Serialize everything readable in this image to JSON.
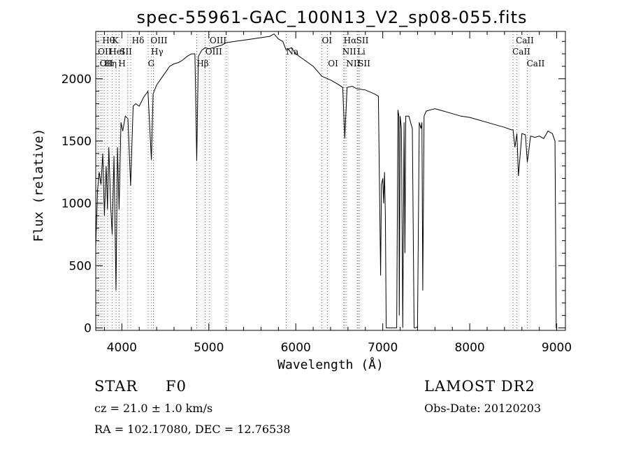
{
  "chart_data": {
    "type": "line",
    "title": "spec-55961-GAC_100N13_V2_sp08-055.fits",
    "xlabel": "Wavelength (Å)",
    "ylabel": "Flux (relative)",
    "xlim": [
      3700,
      9100
    ],
    "ylim": [
      -20,
      2380
    ],
    "xticks": [
      4000,
      5000,
      6000,
      7000,
      8000,
      9000
    ],
    "yticks": [
      0,
      500,
      1000,
      1500,
      2000
    ],
    "grid": false,
    "series": [
      {
        "x": [
          3700,
          3720,
          3740,
          3760,
          3780,
          3800,
          3820,
          3835,
          3850,
          3870,
          3889,
          3910,
          3933,
          3950,
          3968,
          3990,
          4010,
          4040,
          4070,
          4101,
          4130,
          4160,
          4200,
          4250,
          4300,
          4340,
          4360,
          4400,
          4450,
          4500,
          4550,
          4600,
          4650,
          4700,
          4750,
          4800,
          4840,
          4861,
          4880,
          4920,
          4960,
          5000,
          5050,
          5100,
          5150,
          5200,
          5300,
          5400,
          5500,
          5600,
          5700,
          5750,
          5800,
          5850,
          5890,
          5950,
          6000,
          6100,
          6200,
          6300,
          6400,
          6500,
          6540,
          6563,
          6590,
          6650,
          6700,
          6800,
          6900,
          6950,
          6965,
          6975,
          6985,
          7000,
          7010,
          7020,
          7030,
          7040,
          7060,
          7100,
          7140,
          7160,
          7175,
          7185,
          7190,
          7200,
          7215,
          7230,
          7245,
          7255,
          7265,
          7300,
          7320,
          7340,
          7360,
          7380,
          7400,
          7420,
          7440,
          7450,
          7460,
          7475,
          7500,
          7550,
          7600,
          7700,
          7800,
          7900,
          8000,
          8100,
          8200,
          8300,
          8400,
          8480,
          8498,
          8520,
          8542,
          8560,
          8600,
          8640,
          8662,
          8700,
          8750,
          8800,
          8850,
          8900,
          8950,
          8980,
          8995,
          9000
        ],
        "y": [
          650,
          1100,
          1250,
          1150,
          1400,
          900,
          1300,
          950,
          1450,
          1000,
          750,
          1380,
          300,
          1450,
          950,
          1650,
          1580,
          1700,
          1680,
          1140,
          1780,
          1800,
          1780,
          1850,
          1900,
          1350,
          1880,
          1950,
          2000,
          2050,
          2100,
          2120,
          2130,
          2150,
          2180,
          2200,
          2200,
          1340,
          2180,
          2230,
          2250,
          2240,
          2250,
          2260,
          2270,
          2290,
          2300,
          2310,
          2320,
          2330,
          2340,
          2360,
          2320,
          2300,
          2230,
          2250,
          2200,
          2150,
          2100,
          2020,
          1990,
          1950,
          1930,
          1520,
          1930,
          1940,
          1920,
          1910,
          1880,
          1860,
          1000,
          420,
          1150,
          1200,
          1000,
          1250,
          900,
          0,
          0,
          0,
          0,
          0,
          1750,
          1700,
          100,
          1700,
          1600,
          0,
          1650,
          600,
          1700,
          1700,
          1650,
          1600,
          0,
          0,
          10,
          1650,
          1600,
          1650,
          300,
          1700,
          1740,
          1750,
          1760,
          1740,
          1720,
          1700,
          1690,
          1670,
          1650,
          1630,
          1610,
          1590,
          1590,
          1450,
          1560,
          1220,
          1560,
          1550,
          1330,
          1540,
          1530,
          1540,
          1520,
          1580,
          1560,
          1500,
          0,
          0
        ]
      }
    ],
    "lines": [
      {
        "x": 3727,
        "top": "OII",
        "mid": null
      },
      {
        "x": 3750,
        "top": "OII",
        "mid": "OII"
      },
      {
        "x": 3771,
        "top": "Hθ",
        "mid": null
      },
      {
        "x": 3798,
        "top": "Hη",
        "mid": null
      },
      {
        "x": 3835,
        "top": "HeI",
        "mid": "Hη"
      },
      {
        "x": 3889,
        "top": "K",
        "mid": "HeI"
      },
      {
        "x": 3933,
        "top": "SII",
        "mid": "H"
      },
      {
        "x": 3968,
        "top": "H",
        "mid": null
      },
      {
        "x": 4068,
        "top": "SII",
        "mid": null
      },
      {
        "x": 4101,
        "top": "Hδ",
        "mid": null
      },
      {
        "x": 4304,
        "top": "G",
        "mid": null
      },
      {
        "x": 4340,
        "top": "Hγ",
        "mid": null
      },
      {
        "x": 4363,
        "top": "OIII",
        "mid": null
      },
      {
        "x": 4861,
        "top": "Hβ",
        "mid": null
      },
      {
        "x": 4959,
        "top": "OIII",
        "mid": null
      },
      {
        "x": 5007,
        "top": "OIII",
        "mid": null
      },
      {
        "x": 5200,
        "top": null,
        "mid": null
      },
      {
        "x": 5890,
        "top": "Na",
        "mid": null
      },
      {
        "x": 6300,
        "top": "OI",
        "mid": null
      },
      {
        "x": 6364,
        "top": "OI",
        "mid": null
      },
      {
        "x": 6548,
        "top": "NII",
        "mid": null
      },
      {
        "x": 6563,
        "top": "Hα",
        "mid": null
      },
      {
        "x": 6583,
        "top": "NII",
        "mid": null
      },
      {
        "x": 6708,
        "top": "Li",
        "mid": null
      },
      {
        "x": 6716,
        "top": "SII",
        "mid": null
      },
      {
        "x": 6731,
        "top": "SII",
        "mid": null
      },
      {
        "x": 8498,
        "top": "CaII",
        "mid": null
      },
      {
        "x": 8542,
        "top": "CaII",
        "mid": null
      },
      {
        "x": 8662,
        "top": "CaII",
        "mid": null
      }
    ],
    "labels": [
      {
        "text": "Hθ",
        "x": 3775,
        "row": 1
      },
      {
        "text": "K",
        "x": 3890,
        "row": 1
      },
      {
        "text": "Hδ",
        "x": 4115,
        "row": 1
      },
      {
        "text": "OIII",
        "x": 4330,
        "row": 1
      },
      {
        "text": "OIII",
        "x": 5010,
        "row": 1
      },
      {
        "text": "OI",
        "x": 6300,
        "row": 1
      },
      {
        "text": "Hα",
        "x": 6550,
        "row": 1
      },
      {
        "text": "SII",
        "x": 6695,
        "row": 1
      },
      {
        "text": "CaII",
        "x": 8530,
        "row": 1
      },
      {
        "text": "OII",
        "x": 3725,
        "row": 2
      },
      {
        "text": "HeI",
        "x": 3855,
        "row": 2
      },
      {
        "text": "SII",
        "x": 3975,
        "row": 2
      },
      {
        "text": "Hγ",
        "x": 4335,
        "row": 2
      },
      {
        "text": "OIII",
        "x": 4960,
        "row": 2
      },
      {
        "text": "Na",
        "x": 5890,
        "row": 2
      },
      {
        "text": "NII",
        "x": 6535,
        "row": 2
      },
      {
        "text": "Li",
        "x": 6705,
        "row": 2
      },
      {
        "text": "CaII",
        "x": 8490,
        "row": 2
      },
      {
        "text": "OII",
        "x": 3745,
        "row": 3
      },
      {
        "text": "Hη",
        "x": 3800,
        "row": 3
      },
      {
        "text": "H",
        "x": 3960,
        "row": 3
      },
      {
        "text": "G",
        "x": 4300,
        "row": 3
      },
      {
        "text": "Hβ",
        "x": 4860,
        "row": 3
      },
      {
        "text": "OI",
        "x": 6370,
        "row": 3
      },
      {
        "text": "NII",
        "x": 6580,
        "row": 3
      },
      {
        "text": "SII",
        "x": 6715,
        "row": 3
      },
      {
        "text": "CaII",
        "x": 8655,
        "row": 3
      }
    ]
  },
  "info": {
    "object_class": "STAR",
    "subclass": "F0",
    "survey": "LAMOST DR2",
    "cz": "cz = 21.0 ± 1.0 km/s",
    "obs_date": "Obs-Date: 20120203",
    "coords": "RA = 102.17080, DEC =  12.76538"
  }
}
